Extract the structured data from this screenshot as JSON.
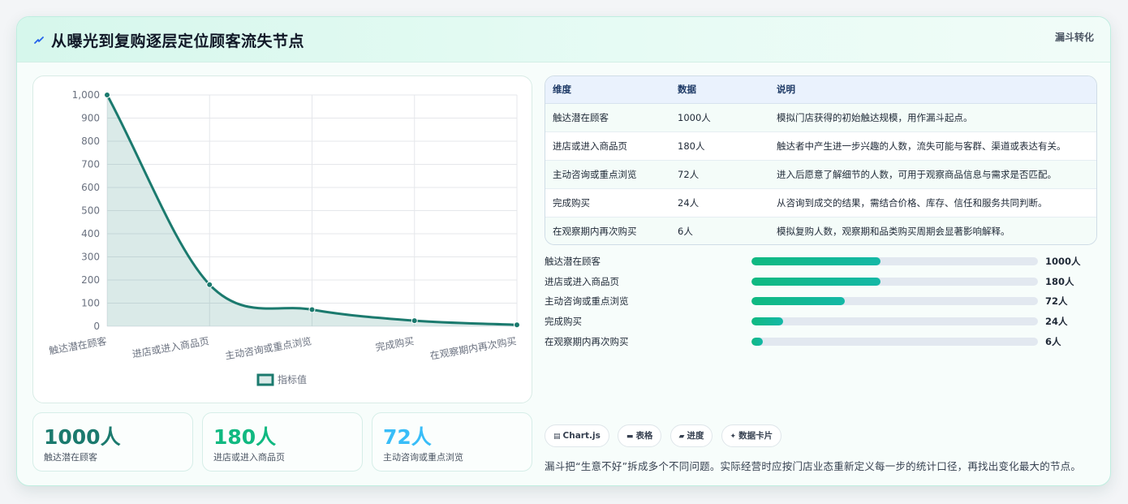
{
  "header": {
    "title": "从曝光到复购逐层定位顾客流失节点",
    "tag": "漏斗转化",
    "icon": "lightning-icon"
  },
  "chart_data": {
    "type": "line",
    "categories": [
      "触达潜在顾客",
      "进店或进入商品页",
      "主动咨询或重点浏览",
      "完成购买",
      "在观察期内再次购买"
    ],
    "series": [
      {
        "name": "指标值",
        "values": [
          1000,
          180,
          72,
          24,
          6
        ],
        "color": "#1b7a6e",
        "fill": "area"
      }
    ],
    "ylim": [
      0,
      1000
    ],
    "yticks": [
      "0",
      "100",
      "200",
      "300",
      "400",
      "500",
      "600",
      "700",
      "800",
      "900",
      "1,000"
    ],
    "grid": true,
    "legend": "bottom",
    "smooth": true
  },
  "stats": [
    {
      "value": "1000人",
      "label": "触达潜在顾客",
      "color": "#1b7a6e"
    },
    {
      "value": "180人",
      "label": "进店或进入商品页",
      "color": "#10b981"
    },
    {
      "value": "72人",
      "label": "主动咨询或重点浏览",
      "color": "#38bdf8"
    }
  ],
  "table": {
    "headers": [
      "维度",
      "数据",
      "说明"
    ],
    "rows": [
      [
        "触达潜在顾客",
        "1000人",
        "模拟门店获得的初始触达规模，用作漏斗起点。"
      ],
      [
        "进店或进入商品页",
        "180人",
        "触达者中产生进一步兴趣的人数，流失可能与客群、渠道或表达有关。"
      ],
      [
        "主动咨询或重点浏览",
        "72人",
        "进入后愿意了解细节的人数，可用于观察商品信息与需求是否匹配。"
      ],
      [
        "完成购买",
        "24人",
        "从咨询到成交的结果，需结合价格、库存、信任和服务共同判断。"
      ],
      [
        "在观察期内再次购买",
        "6人",
        "模拟复购人数，观察期和品类购买周期会显著影响解释。"
      ]
    ]
  },
  "progress": [
    {
      "label": "触达潜在顾客",
      "value": "1000人",
      "fill_percent": 45
    },
    {
      "label": "进店或进入商品页",
      "value": "180人",
      "fill_percent": 45
    },
    {
      "label": "主动咨询或重点浏览",
      "value": "72人",
      "fill_percent": 32.5
    },
    {
      "label": "完成购买",
      "value": "24人",
      "fill_percent": 11
    },
    {
      "label": "在观察期内再次购买",
      "value": "6人",
      "fill_percent": 4
    }
  ],
  "chips": [
    {
      "icon": "chart-icon",
      "glyph": "▤",
      "label": "Chart.js"
    },
    {
      "icon": "table-icon",
      "glyph": "▬",
      "label": "表格"
    },
    {
      "icon": "progress-icon",
      "glyph": "▰",
      "label": "进度"
    },
    {
      "icon": "sparkle-icon",
      "glyph": "✦",
      "label": "数据卡片"
    }
  ],
  "footer": {
    "text": "漏斗把“生意不好”拆成多个不同问题。实际经营时应按门店业态重新定义每一步的统计口径，再找出变化最大的节点。"
  }
}
